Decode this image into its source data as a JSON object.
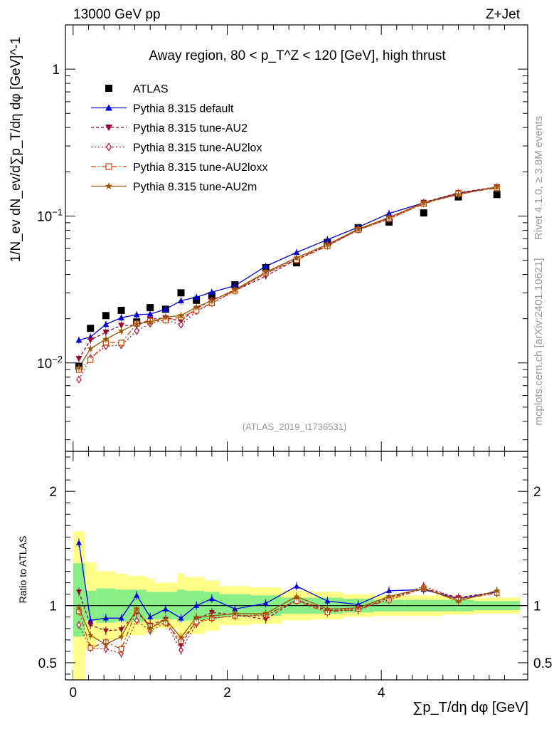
{
  "header": {
    "energy": "13000 GeV pp",
    "process": "Z+Jet"
  },
  "side_labels": {
    "rivet": "Rivet 4.1.0, ≥ 3.8M events",
    "mcplots": "mcplots.cern.ch [arXiv:2401.10621]"
  },
  "chart_data": [
    {
      "type": "scatter",
      "panel": "main",
      "title": "Away region, 80 < p_T^Z < 120 [GeV], high thrust",
      "analysis_label": "(ATLAS_2019_I1736531)",
      "yscale": "log",
      "ylabel": "1/N_ev dN_ev/d∑p_T/dη dφ [GeV]^-1",
      "xlim": [
        -0.1,
        5.9
      ],
      "ylim": [
        0.0025,
        2.0
      ],
      "x_ticks": [
        0,
        2,
        4
      ],
      "y_ticks": [
        {
          "v": 0.01,
          "base": "10",
          "exp": "−2"
        },
        {
          "v": 0.1,
          "base": "10",
          "exp": "−1"
        },
        {
          "v": 1,
          "label": "1"
        }
      ],
      "x": [
        0.075,
        0.225,
        0.425,
        0.625,
        0.825,
        1.0,
        1.2,
        1.4,
        1.6,
        1.8,
        2.1,
        2.5,
        2.9,
        3.3,
        3.7,
        4.1,
        4.55,
        5.0,
        5.5
      ],
      "series": [
        {
          "name": "ATLAS",
          "marker": "square",
          "values": [
            0.0095,
            0.0172,
            0.021,
            0.0228,
            0.019,
            0.0238,
            0.0232,
            0.03,
            0.0267,
            0.0287,
            0.034,
            0.0445,
            0.048,
            0.066,
            0.083,
            0.091,
            0.105,
            0.135,
            0.14
          ]
        },
        {
          "name": "Pythia 8.315 default",
          "marker": "triangle-up",
          "values": [
            0.0143,
            0.015,
            0.0183,
            0.0203,
            0.0213,
            0.0215,
            0.0232,
            0.0265,
            0.028,
            0.0303,
            0.0335,
            0.0455,
            0.0565,
            0.069,
            0.084,
            0.104,
            0.123,
            0.143,
            0.157
          ]
        },
        {
          "name": "Pythia 8.315 tune-AU2",
          "marker": "triangle-down",
          "values": [
            0.0107,
            0.0143,
            0.0162,
            0.018,
            0.018,
            0.0198,
            0.0203,
            0.0193,
            0.0235,
            0.0268,
            0.031,
            0.039,
            0.0505,
            0.0635,
            0.08,
            0.097,
            0.124,
            0.144,
            0.158
          ]
        },
        {
          "name": "Pythia 8.315 tune-AU2lox",
          "marker": "diamond-open",
          "values": [
            0.0077,
            0.0108,
            0.013,
            0.0132,
            0.0165,
            0.0185,
            0.0197,
            0.0182,
            0.0225,
            0.0255,
            0.031,
            0.0405,
            0.051,
            0.0625,
            0.081,
            0.095,
            0.123,
            0.143,
            0.157
          ]
        },
        {
          "name": "Pythia 8.315 tune-AU2loxx",
          "marker": "square-open",
          "values": [
            0.009,
            0.0105,
            0.0138,
            0.0137,
            0.0185,
            0.0193,
            0.0195,
            0.0205,
            0.0227,
            0.0255,
            0.031,
            0.041,
            0.0502,
            0.0625,
            0.0805,
            0.096,
            0.121,
            0.142,
            0.155
          ]
        },
        {
          "name": "Pythia 8.315 tune-AU2m",
          "marker": "star",
          "values": [
            0.0093,
            0.0125,
            0.0145,
            0.0165,
            0.0185,
            0.019,
            0.0205,
            0.021,
            0.024,
            0.0265,
            0.0315,
            0.0415,
            0.052,
            0.064,
            0.0815,
            0.098,
            0.123,
            0.14,
            0.158
          ]
        }
      ]
    },
    {
      "type": "line",
      "panel": "ratio",
      "ylabel": "Ratio to ATLAS",
      "xlabel": "∑p_T/dη dφ [GeV]",
      "ylim": [
        0.35,
        2.35
      ],
      "y_ticks": [
        {
          "v": 0.5,
          "label": "0.5"
        },
        {
          "v": 1,
          "label": "1"
        },
        {
          "v": 2,
          "label": "2"
        }
      ],
      "x": [
        0.075,
        0.225,
        0.425,
        0.625,
        0.825,
        1.0,
        1.2,
        1.4,
        1.6,
        1.8,
        2.1,
        2.5,
        2.9,
        3.3,
        3.7,
        4.1,
        4.55,
        5.0,
        5.5
      ],
      "bin_edges": [
        0.0,
        0.15,
        0.3,
        0.55,
        0.7,
        0.95,
        1.05,
        1.35,
        1.45,
        1.7,
        1.9,
        2.3,
        2.7,
        3.1,
        3.5,
        3.9,
        4.3,
        4.8,
        5.2,
        5.8
      ],
      "band_inner": [
        [
          0.73,
          1.37
        ],
        [
          0.87,
          1.13
        ],
        [
          0.85,
          1.15
        ],
        [
          0.86,
          1.14
        ],
        [
          0.86,
          1.14
        ],
        [
          0.88,
          1.12
        ],
        [
          0.88,
          1.12
        ],
        [
          0.86,
          1.14
        ],
        [
          0.87,
          1.13
        ],
        [
          0.88,
          1.12
        ],
        [
          0.9,
          1.1
        ],
        [
          0.91,
          1.09
        ],
        [
          0.93,
          1.07
        ],
        [
          0.93,
          1.07
        ],
        [
          0.94,
          1.06
        ],
        [
          0.95,
          1.05
        ],
        [
          0.95,
          1.05
        ],
        [
          0.95,
          1.05
        ],
        [
          0.96,
          1.04
        ]
      ],
      "band_outer": [
        [
          0.35,
          1.65
        ],
        [
          0.62,
          1.38
        ],
        [
          0.7,
          1.3
        ],
        [
          0.72,
          1.28
        ],
        [
          0.74,
          1.26
        ],
        [
          0.76,
          1.24
        ],
        [
          0.8,
          1.2
        ],
        [
          0.72,
          1.28
        ],
        [
          0.75,
          1.25
        ],
        [
          0.78,
          1.22
        ],
        [
          0.83,
          1.17
        ],
        [
          0.84,
          1.16
        ],
        [
          0.87,
          1.13
        ],
        [
          0.88,
          1.12
        ],
        [
          0.9,
          1.1
        ],
        [
          0.91,
          1.09
        ],
        [
          0.91,
          1.09
        ],
        [
          0.92,
          1.08
        ],
        [
          0.93,
          1.07
        ]
      ],
      "series": [
        {
          "name": "Pythia 8.315 default",
          "values": [
            1.55,
            0.87,
            0.89,
            0.89,
            1.09,
            0.9,
            0.97,
            0.89,
            1.0,
            1.06,
            0.97,
            1.02,
            1.17,
            1.04,
            1.01,
            1.13,
            1.14,
            1.06,
            1.12
          ]
        },
        {
          "name": "Pythia 8.315 tune-AU2",
          "values": [
            1.12,
            0.83,
            0.78,
            0.79,
            0.94,
            0.83,
            0.88,
            0.65,
            0.88,
            0.94,
            0.92,
            0.88,
            1.05,
            0.96,
            0.96,
            1.07,
            1.15,
            1.07,
            1.12
          ]
        },
        {
          "name": "Pythia 8.315 tune-AU2lox",
          "values": [
            0.83,
            0.63,
            0.62,
            0.58,
            0.87,
            0.78,
            0.85,
            0.61,
            0.84,
            0.89,
            0.91,
            0.91,
            1.05,
            0.95,
            0.98,
            1.05,
            1.17,
            1.06,
            1.11
          ]
        },
        {
          "name": "Pythia 8.315 tune-AU2loxx",
          "values": [
            0.95,
            0.63,
            0.68,
            0.62,
            0.96,
            0.82,
            0.85,
            0.69,
            0.86,
            0.89,
            0.91,
            0.92,
            1.04,
            0.94,
            0.97,
            1.05,
            1.15,
            1.05,
            1.11
          ]
        },
        {
          "name": "Pythia 8.315 tune-AU2m",
          "values": [
            0.98,
            0.74,
            0.66,
            0.73,
            0.97,
            0.8,
            0.88,
            0.72,
            0.9,
            0.91,
            0.93,
            0.93,
            1.08,
            0.97,
            0.98,
            1.08,
            1.15,
            1.04,
            1.13
          ]
        }
      ]
    }
  ],
  "styles": [
    {
      "color": "#000000",
      "dash": ""
    },
    {
      "color": "#0000dd",
      "dash": ""
    },
    {
      "color": "#990033",
      "dash": "4,3"
    },
    {
      "color": "#bb1133",
      "dash": "2,3"
    },
    {
      "color": "#cc4400",
      "dash": "7,3,2,3"
    },
    {
      "color": "#995500",
      "dash": ""
    }
  ],
  "band_colors": {
    "inner": "#88ee88",
    "outer": "#ffff88"
  }
}
